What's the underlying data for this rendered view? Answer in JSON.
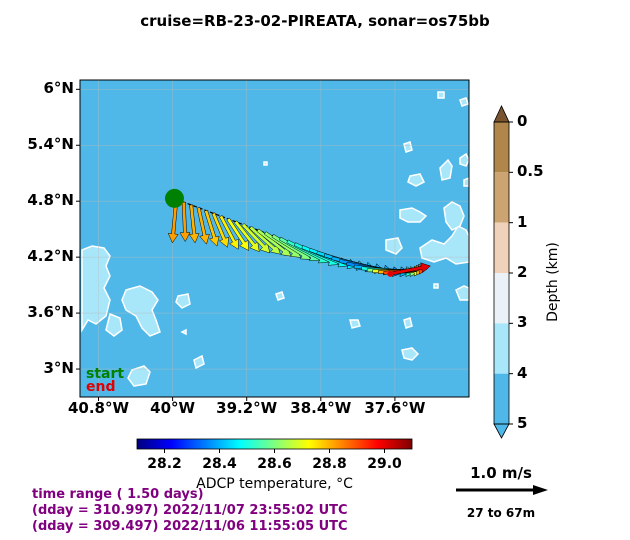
{
  "title": "cruise=RB-23-02-PIREATA,   sonar=os75bb",
  "chart_data": {
    "type": "vector-map",
    "x_ticks": [
      "40.8°W",
      "40°W",
      "39.2°W",
      "38.4°W",
      "37.6°W"
    ],
    "x_tick_values": [
      -40.8,
      -40.0,
      -39.2,
      -38.4,
      -37.6
    ],
    "y_ticks": [
      "6°N",
      "5.4°N",
      "4.8°N",
      "4.2°N",
      "3.6°N",
      "3°N"
    ],
    "y_tick_values": [
      6.0,
      5.4,
      4.8,
      4.2,
      3.6,
      3.0
    ],
    "xlim": [
      -41.0,
      -36.8
    ],
    "ylim": [
      2.7,
      6.1
    ],
    "depth_colorbar": {
      "title": "Depth (km)",
      "ticks": [
        "0",
        "0.5",
        "1",
        "2",
        "3",
        "4",
        "5"
      ],
      "colors": [
        "#b0864a",
        "#cca472",
        "#f0d2bb",
        "#ebf2f7",
        "#a8e6fa",
        "#4fb8e8"
      ],
      "ocean_color": "#4fb8e8",
      "shallow_color": "#a8e6fa"
    },
    "temperature_colorbar": {
      "title": "ADCP temperature, °C",
      "ticks": [
        "28.2",
        "28.4",
        "28.6",
        "28.8",
        "29.0"
      ],
      "tick_values": [
        28.2,
        28.4,
        28.6,
        28.8,
        29.0
      ],
      "range": [
        28.1,
        29.1
      ]
    },
    "track_start": {
      "lon": -39.98,
      "lat": 4.83
    },
    "track_end": {
      "lon": -37.65,
      "lat": 4.02
    },
    "vectors": [
      {
        "lon": -39.96,
        "lat": 4.82,
        "u": -0.05,
        "v": -0.55,
        "t": 28.82
      },
      {
        "lon": -39.88,
        "lat": 4.79,
        "u": 0.02,
        "v": -0.5,
        "t": 28.82
      },
      {
        "lon": -39.8,
        "lat": 4.76,
        "u": 0.05,
        "v": -0.48,
        "t": 28.8
      },
      {
        "lon": -39.72,
        "lat": 4.73,
        "u": 0.1,
        "v": -0.46,
        "t": 28.8
      },
      {
        "lon": -39.64,
        "lat": 4.7,
        "u": 0.14,
        "v": -0.45,
        "t": 28.78
      },
      {
        "lon": -39.56,
        "lat": 4.67,
        "u": 0.18,
        "v": -0.43,
        "t": 28.76
      },
      {
        "lon": -39.48,
        "lat": 4.64,
        "u": 0.22,
        "v": -0.42,
        "t": 28.74
      },
      {
        "lon": -39.4,
        "lat": 4.61,
        "u": 0.26,
        "v": -0.4,
        "t": 28.72
      },
      {
        "lon": -39.32,
        "lat": 4.58,
        "u": 0.3,
        "v": -0.38,
        "t": 28.7
      },
      {
        "lon": -39.24,
        "lat": 4.55,
        "u": 0.34,
        "v": -0.36,
        "t": 28.68
      },
      {
        "lon": -39.16,
        "lat": 4.52,
        "u": 0.38,
        "v": -0.34,
        "t": 28.66
      },
      {
        "lon": -39.08,
        "lat": 4.49,
        "u": 0.42,
        "v": -0.33,
        "t": 28.64
      },
      {
        "lon": -39.0,
        "lat": 4.46,
        "u": 0.45,
        "v": -0.31,
        "t": 28.62
      },
      {
        "lon": -38.92,
        "lat": 4.43,
        "u": 0.48,
        "v": -0.3,
        "t": 28.6
      },
      {
        "lon": -38.84,
        "lat": 4.4,
        "u": 0.5,
        "v": -0.28,
        "t": 28.56
      },
      {
        "lon": -38.76,
        "lat": 4.37,
        "u": 0.52,
        "v": -0.27,
        "t": 28.52
      },
      {
        "lon": -38.68,
        "lat": 4.34,
        "u": 0.55,
        "v": -0.26,
        "t": 28.5
      },
      {
        "lon": -38.6,
        "lat": 4.31,
        "u": 0.58,
        "v": -0.24,
        "t": 28.48
      },
      {
        "lon": -38.52,
        "lat": 4.28,
        "u": 0.6,
        "v": -0.22,
        "t": 28.46
      },
      {
        "lon": -38.44,
        "lat": 4.25,
        "u": 0.62,
        "v": -0.2,
        "t": 28.44
      },
      {
        "lon": -38.36,
        "lat": 4.22,
        "u": 0.64,
        "v": -0.18,
        "t": 28.42
      },
      {
        "lon": -38.28,
        "lat": 4.19,
        "u": 0.66,
        "v": -0.16,
        "t": 28.4
      },
      {
        "lon": -38.2,
        "lat": 4.16,
        "u": 0.68,
        "v": -0.14,
        "t": 28.38
      },
      {
        "lon": -38.12,
        "lat": 4.13,
        "u": 0.7,
        "v": -0.12,
        "t": 28.36
      },
      {
        "lon": -38.04,
        "lat": 4.1,
        "u": 0.7,
        "v": -0.08,
        "t": 28.4
      },
      {
        "lon": -37.96,
        "lat": 4.08,
        "u": 0.68,
        "v": -0.05,
        "t": 28.5
      },
      {
        "lon": -37.9,
        "lat": 4.06,
        "u": 0.66,
        "v": -0.02,
        "t": 28.6
      },
      {
        "lon": -37.84,
        "lat": 4.05,
        "u": 0.64,
        "v": 0.0,
        "t": 28.7
      },
      {
        "lon": -37.78,
        "lat": 4.04,
        "u": 0.6,
        "v": 0.03,
        "t": 28.8
      },
      {
        "lon": -37.72,
        "lat": 4.03,
        "u": 0.56,
        "v": 0.06,
        "t": 28.9
      },
      {
        "lon": -37.66,
        "lat": 4.02,
        "u": 0.52,
        "v": 0.1,
        "t": 29.0
      }
    ],
    "scale_arrow_speed": 1.0
  },
  "legend": {
    "start": "start",
    "end": "end"
  },
  "info": {
    "line1": "time range ( 1.50 days)",
    "line2": "(dday = 310.997) 2022/11/07 23:55:02 UTC",
    "line3": "(dday = 309.497) 2022/11/06 11:55:05 UTC"
  },
  "scale": {
    "speed_label": "1.0 m/s",
    "depth_label": "27 to 67m"
  }
}
